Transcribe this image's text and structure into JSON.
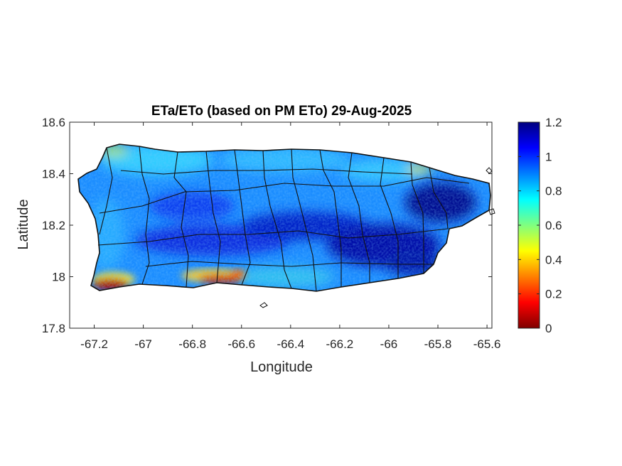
{
  "chart_data": {
    "type": "heatmap",
    "title": "ETa/ETo (based on PM ETo) 29-Aug-2025",
    "xlabel": "Longitude",
    "ylabel": "Latitude",
    "xlim": [
      -67.3,
      -65.58
    ],
    "ylim": [
      17.8,
      18.6
    ],
    "xticks": [
      "-67.2",
      "-67",
      "-66.8",
      "-66.6",
      "-66.4",
      "-66.2",
      "-66",
      "-65.8",
      "-65.6"
    ],
    "xtick_values": [
      -67.2,
      -67.0,
      -66.8,
      -66.6,
      -66.4,
      -66.2,
      -66.0,
      -65.8,
      -65.6
    ],
    "yticks": [
      "17.8",
      "18",
      "18.2",
      "18.4",
      "18.6"
    ],
    "ytick_values": [
      17.8,
      18.0,
      18.2,
      18.4,
      18.6
    ],
    "colorbar": {
      "min": 0,
      "max": 1.2,
      "ticks": [
        "0",
        "0.2",
        "0.4",
        "0.6",
        "0.8",
        "1",
        "1.2"
      ],
      "tick_values": [
        0,
        0.2,
        0.4,
        0.6,
        0.8,
        1.0,
        1.2
      ],
      "colormap": "jet"
    },
    "grid": false,
    "region": "Puerto Rico",
    "value_pattern": {
      "typical_range": [
        0.7,
        1.2
      ],
      "high_areas": "central mountain band and eastern interior near -66.2 to -65.8 longitude (about 1.0 to 1.2)",
      "low_areas": "southwest coast near -67.2 to -66.6 longitude and 17.95 to 18.05 latitude (about 0 to 0.4)",
      "moderate_areas": "north coast and western lowlands (about 0.6 to 0.9)"
    }
  }
}
